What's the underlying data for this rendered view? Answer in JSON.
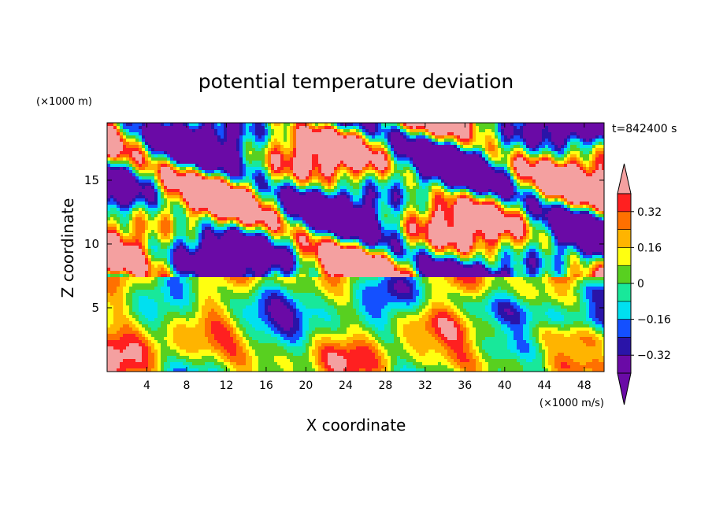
{
  "chart_data": {
    "type": "heatmap",
    "title": "potential temperature deviation",
    "xlabel": "X coordinate",
    "ylabel": "Z coordinate",
    "x_unit": "(×1000 m/s)",
    "y_unit": "(×1000 m)",
    "time_label": "t=842400 s",
    "xlim": [
      0,
      50
    ],
    "ylim": [
      0,
      19.5
    ],
    "x_ticks": [
      4,
      8,
      12,
      16,
      20,
      24,
      28,
      32,
      36,
      40,
      44,
      48
    ],
    "y_ticks": [
      5,
      10,
      15
    ],
    "colorbar": {
      "levels": [
        -0.4,
        -0.32,
        -0.24,
        -0.16,
        -0.08,
        0,
        0.08,
        0.16,
        0.24,
        0.32,
        0.4
      ],
      "tick_labels": [
        {
          "value": -0.32,
          "label": "−0.32"
        },
        {
          "value": -0.16,
          "label": "−0.16"
        },
        {
          "value": 0,
          "label": "0"
        },
        {
          "value": 0.16,
          "label": "0.16"
        },
        {
          "value": 0.32,
          "label": "0.32"
        }
      ],
      "colors": [
        "#6a0aa6",
        "#2a14a8",
        "#1450ff",
        "#00e0f0",
        "#18e89a",
        "#58d020",
        "#ffff10",
        "#ffb400",
        "#ff7000",
        "#ff2020"
      ],
      "under_color": "#6a0aa6",
      "over_color": "#f4a0a0",
      "extend": "both"
    }
  }
}
